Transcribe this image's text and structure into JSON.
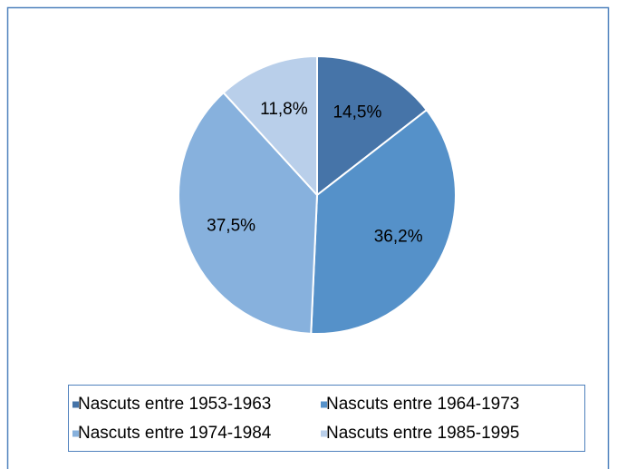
{
  "chart_data": {
    "type": "pie",
    "categories": [
      "Nascuts entre 1953-1963",
      "Nascuts entre 1964-1973",
      "Nascuts entre 1974-1984",
      "Nascuts entre 1985-1995"
    ],
    "values": [
      14.5,
      36.2,
      37.5,
      11.8
    ],
    "value_labels": [
      "14,5%",
      "36,2%",
      "37,5%",
      "11,8%"
    ],
    "colors": [
      "#4674a8",
      "#5591c9",
      "#87b1dd",
      "#b9cfea"
    ],
    "legend": "bottom"
  }
}
